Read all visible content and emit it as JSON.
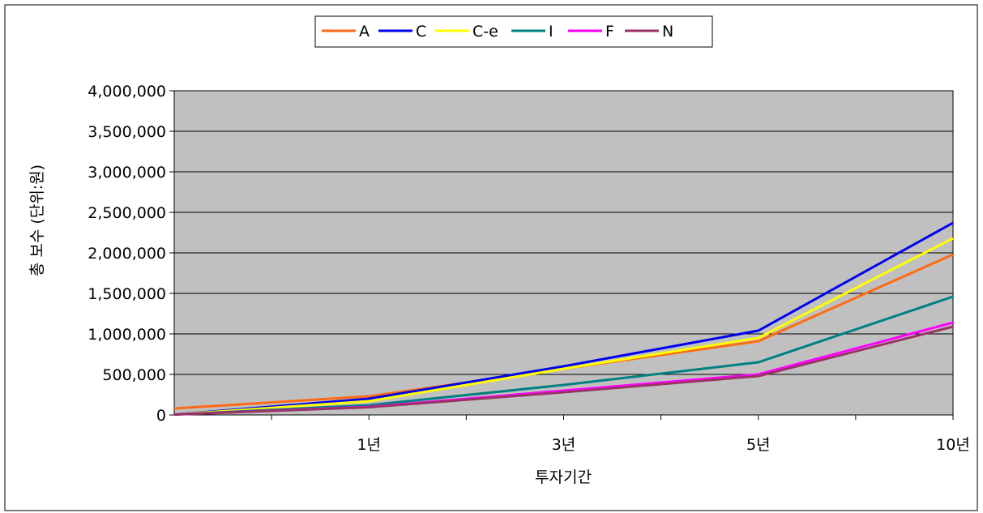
{
  "chart_data": {
    "type": "line",
    "title": "",
    "xlabel": "투자기간",
    "ylabel": "총 보수  (단위:원)",
    "categories": [
      "",
      "1년",
      "",
      "3년",
      "",
      "5년",
      "",
      "10년"
    ],
    "x": [
      0,
      1,
      2,
      3,
      4,
      5,
      6,
      7,
      8
    ],
    "ylim": [
      0,
      4000000
    ],
    "yticks": [
      0,
      500000,
      1000000,
      1500000,
      2000000,
      2500000,
      3000000,
      3500000,
      4000000
    ],
    "ytick_labels": [
      "0",
      "500,000",
      "1,000,000",
      "1,500,000",
      "2,000,000",
      "2,500,000",
      "3,000,000",
      "3,500,000",
      "4,000,000"
    ],
    "xtick_labels": [
      {
        "at": 2,
        "label": "1년"
      },
      {
        "at": 4,
        "label": "3년"
      },
      {
        "at": 6,
        "label": "5년"
      },
      {
        "at": 8,
        "label": "10년"
      }
    ],
    "plot_background": "#c0c0c0",
    "grid": true,
    "legend_position": "top-center",
    "series": [
      {
        "name": "A",
        "color": "#ff6a13",
        "points": [
          [
            0,
            80000
          ],
          [
            2,
            230000
          ],
          [
            6,
            910000
          ],
          [
            8,
            1980000
          ]
        ]
      },
      {
        "name": "C",
        "color": "#0000ee",
        "points": [
          [
            0,
            5000
          ],
          [
            2,
            200000
          ],
          [
            4,
            600000
          ],
          [
            6,
            1040000
          ],
          [
            8,
            2370000
          ]
        ]
      },
      {
        "name": "C-e",
        "color": "#ffff00",
        "points": [
          [
            0,
            5000
          ],
          [
            2,
            170000
          ],
          [
            4,
            570000
          ],
          [
            6,
            950000
          ],
          [
            8,
            2180000
          ]
        ]
      },
      {
        "name": "I",
        "color": "#008080",
        "points": [
          [
            0,
            5000
          ],
          [
            2,
            120000
          ],
          [
            4,
            370000
          ],
          [
            6,
            650000
          ],
          [
            8,
            1460000
          ]
        ]
      },
      {
        "name": "F",
        "color": "#ff00ff",
        "points": [
          [
            0,
            5000
          ],
          [
            2,
            100000
          ],
          [
            4,
            300000
          ],
          [
            6,
            500000
          ],
          [
            8,
            1140000
          ]
        ]
      },
      {
        "name": "N",
        "color": "#993366",
        "points": [
          [
            0,
            5000
          ],
          [
            2,
            95000
          ],
          [
            4,
            280000
          ],
          [
            6,
            480000
          ],
          [
            8,
            1090000
          ]
        ]
      }
    ]
  }
}
